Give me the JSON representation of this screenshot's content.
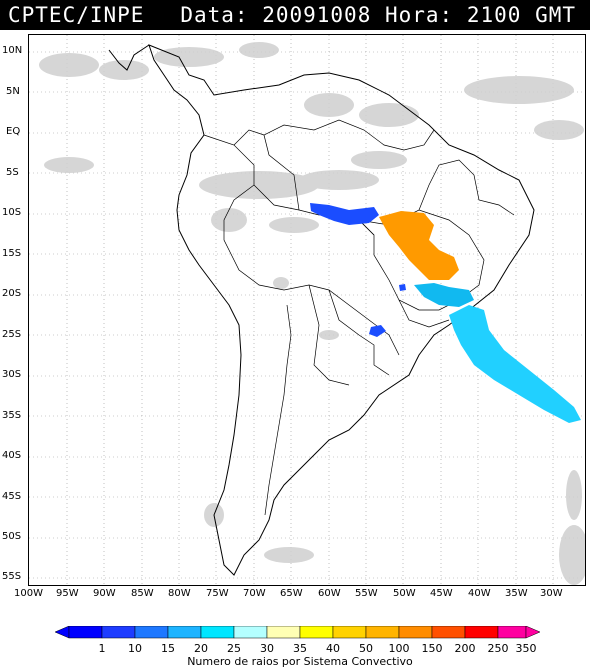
{
  "header": {
    "agency": "CPTEC/INPE",
    "datetime": "Data: 20091008 Hora: 2100 GMT"
  },
  "map": {
    "lat_labels": [
      "10N",
      "5N",
      "EQ",
      "5S",
      "10S",
      "15S",
      "20S",
      "25S",
      "30S",
      "35S",
      "40S",
      "45S",
      "50S",
      "55S"
    ],
    "lon_labels": [
      "100W",
      "95W",
      "90W",
      "85W",
      "80W",
      "75W",
      "70W",
      "65W",
      "60W",
      "55W",
      "50W",
      "45W",
      "40W",
      "35W",
      "30W"
    ],
    "layers": [
      "cloud-cover",
      "country-borders",
      "state-borders",
      "lightning-density"
    ],
    "lightning_clusters": [
      {
        "name": "amazon-band",
        "color": "#1b4dff"
      },
      {
        "name": "central-brazil",
        "color": "#ff9a00"
      },
      {
        "name": "southeast-coast",
        "color": "#11b9f0"
      },
      {
        "name": "atlantic-tail",
        "color": "#21d0ff"
      },
      {
        "name": "paraguay-spot",
        "color": "#1b4dff"
      }
    ]
  },
  "legend": {
    "title": "Numero de raios por Sistema Convectivo",
    "labels": [
      "1",
      "10",
      "15",
      "20",
      "25",
      "30",
      "35",
      "40",
      "50",
      "100",
      "150",
      "200",
      "250",
      "350"
    ],
    "colors": [
      "#0000ff",
      "#1e3cff",
      "#1e78ff",
      "#1eb4ff",
      "#00e6ff",
      "#b4ffff",
      "#ffffb4",
      "#ffff00",
      "#ffd200",
      "#ffb400",
      "#ff8c00",
      "#ff5000",
      "#ff0000",
      "#ff00a0"
    ]
  }
}
